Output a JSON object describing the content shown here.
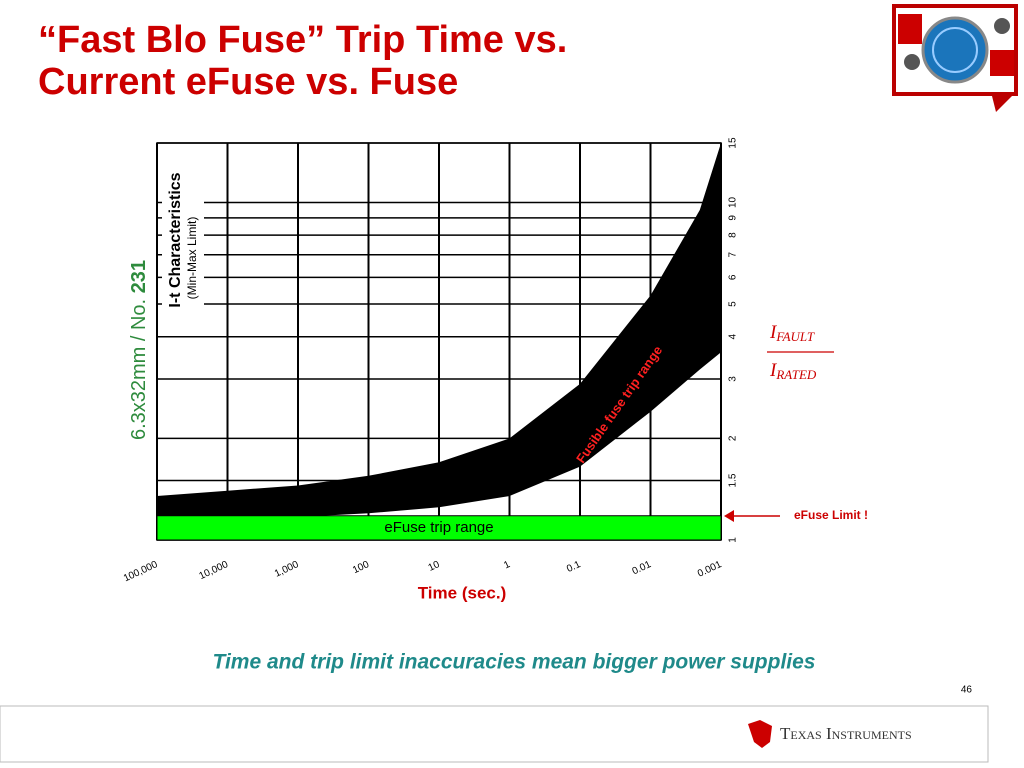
{
  "slide": {
    "title_lines": [
      "“Fast Blo Fuse” Trip Time vs.",
      "Current eFuse vs. Fuse"
    ],
    "caption": "Time and trip limit inaccuracies mean bigger power supplies",
    "page_number": "46",
    "company": "Texas Instruments"
  },
  "chart_data": {
    "type": "band",
    "xlabel": "Time (sec.)",
    "ylabel": {
      "numerator": "I",
      "numerator_sub": "FAULT",
      "denominator": "I",
      "denominator_sub": "RATED"
    },
    "x": [
      100000,
      10000,
      1000,
      100,
      10,
      1,
      0.1,
      0.01,
      0.002,
      0.001
    ],
    "series": [
      {
        "name": "Fusible fuse trip range",
        "color": "#000000",
        "upper": [
          1.35,
          1.4,
          1.45,
          1.55,
          1.7,
          2.0,
          2.9,
          5.3,
          9.5,
          15
        ],
        "lower": [
          1.15,
          1.15,
          1.17,
          1.2,
          1.25,
          1.35,
          1.65,
          2.4,
          3.2,
          3.6
        ]
      }
    ],
    "efuse_band": {
      "name": "eFuse trip range",
      "color": "#00ff00",
      "values": [
        1,
        1.18
      ]
    },
    "efuse_note": "eFuse Limit !",
    "inner_title": "I-t Characteristics",
    "inner_subtitle": "(Min-Max Limit)",
    "side_label": "6.3x32mm / No. ",
    "side_label_bold": "231",
    "xscale": "log",
    "yscale": "log",
    "grid": true,
    "xlim": [
      100000,
      0.001
    ],
    "ylim": [
      1,
      15
    ],
    "xticks": [
      {
        "value": 100000,
        "label": "100,000"
      },
      {
        "value": 10000,
        "label": "10,000"
      },
      {
        "value": 1000,
        "label": "1,000"
      },
      100,
      10,
      1,
      0.1,
      0.01,
      0.001
    ],
    "yticks": [
      1,
      1.5,
      2,
      3,
      4,
      5,
      6,
      7,
      8,
      9,
      10,
      15
    ]
  }
}
